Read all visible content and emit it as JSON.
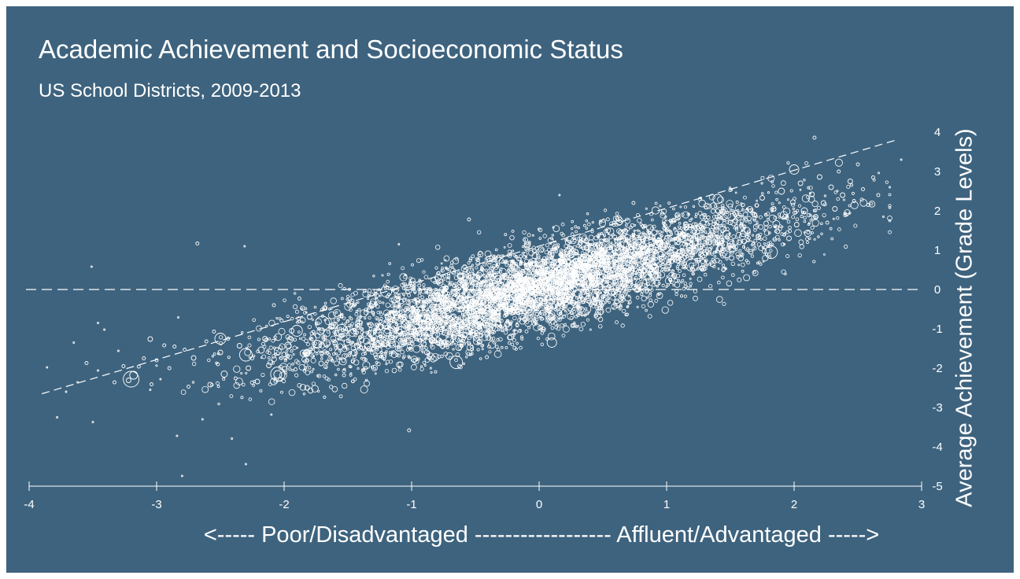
{
  "title": "Academic Achievement and Socioeconomic Status",
  "subtitle": "US School Districts, 2009-2013",
  "chart_data": {
    "type": "scatter",
    "title": "Academic Achievement and Socioeconomic Status",
    "subtitle": "US School Districts, 2009-2013",
    "xlabel": "<----- Poor/Disadvantaged ------------------ Affluent/Advantaged ----->",
    "ylabel": "Average Achievement (Grade Levels)",
    "xlim": [
      -4,
      3
    ],
    "ylim": [
      -5,
      4
    ],
    "x_ticks": [
      "-4",
      "-3",
      "-2",
      "-1",
      "0",
      "1",
      "2",
      "3"
    ],
    "y_ticks": [
      "4",
      "3",
      "2",
      "1",
      "0",
      "-1",
      "-2",
      "-3",
      "-4",
      "-5"
    ],
    "reference_line_y": 0,
    "trend_line": {
      "from": [
        -3.9,
        -2.65
      ],
      "to": [
        2.8,
        3.8
      ],
      "style": "dashed"
    },
    "grid": false,
    "marker": "hollow circle, size proportional to district enrollment",
    "colors": {
      "background": "#3e637e",
      "points": "#ffffff"
    },
    "points": [
      [
        -3.86,
        -1.98,
        1
      ],
      [
        -3.78,
        -3.25,
        1
      ],
      [
        -3.71,
        -2.6,
        1
      ],
      [
        -3.62,
        -2.36,
        1
      ],
      [
        -3.55,
        -1.87,
        2
      ],
      [
        -3.51,
        0.58,
        1
      ],
      [
        -3.5,
        -3.37,
        1
      ],
      [
        -3.46,
        -2.06,
        1
      ],
      [
        -3.41,
        -1.02,
        1
      ],
      [
        -3.33,
        -2.36,
        2
      ],
      [
        -3.3,
        -1.56,
        1
      ],
      [
        -3.26,
        -1.95,
        2
      ],
      [
        -3.22,
        -2.31,
        3
      ],
      [
        -3.18,
        -2.18,
        5
      ],
      [
        -3.14,
        -1.96,
        2
      ],
      [
        -3.1,
        -1.75,
        2
      ],
      [
        -3.05,
        -2.55,
        1
      ],
      [
        -3.04,
        -2.41,
        2
      ],
      [
        -3.0,
        -1.8,
        2
      ],
      [
        -2.97,
        -2.28,
        1
      ],
      [
        -2.94,
        -1.42,
        2
      ],
      [
        -2.9,
        -2.0,
        2
      ],
      [
        -2.86,
        -1.45,
        2
      ],
      [
        -2.83,
        -0.71,
        1
      ],
      [
        -2.8,
        -4.74,
        1
      ],
      [
        -2.78,
        -1.53,
        2
      ],
      [
        -2.75,
        -2.47,
        2
      ],
      [
        -2.71,
        -1.74,
        3
      ],
      [
        -2.68,
        1.17,
        2
      ],
      [
        -2.64,
        -3.3,
        1
      ],
      [
        -2.61,
        -1.32,
        2
      ],
      [
        -2.58,
        -2.42,
        3
      ],
      [
        -2.55,
        -1.07,
        2
      ],
      [
        -2.52,
        -1.9,
        2
      ],
      [
        -2.5,
        -1.6,
        3
      ],
      [
        -2.47,
        -2.15,
        4
      ],
      [
        -2.44,
        -1.25,
        2
      ],
      [
        -2.41,
        -3.79,
        1
      ],
      [
        -2.38,
        -2.26,
        2
      ],
      [
        -2.35,
        -1.43,
        3
      ],
      [
        -2.31,
        1.1,
        1
      ],
      [
        -2.3,
        -4.44,
        1
      ],
      [
        -2.28,
        -2.0,
        3
      ],
      [
        -2.25,
        -1.75,
        2
      ],
      [
        -2.21,
        -2.34,
        3
      ],
      [
        -2.18,
        -1.54,
        4
      ],
      [
        -2.15,
        -1.25,
        3
      ],
      [
        -2.12,
        -1.93,
        3
      ],
      [
        -2.1,
        -3.18,
        1
      ],
      [
        -2.08,
        -0.4,
        2
      ],
      [
        -2.05,
        -2.16,
        5
      ],
      [
        -2.02,
        -0.79,
        2
      ],
      [
        -2.0,
        -1.65,
        3
      ],
      [
        -1.97,
        -1.42,
        4
      ],
      [
        -1.94,
        -1.05,
        3
      ],
      [
        -1.91,
        -2.03,
        2
      ],
      [
        -1.88,
        -0.23,
        2
      ],
      [
        -1.85,
        -1.62,
        4
      ],
      [
        -1.82,
        -2.5,
        3
      ],
      [
        -1.8,
        -0.7,
        3
      ],
      [
        -1.77,
        -1.08,
        2
      ],
      [
        -1.74,
        -1.39,
        5
      ],
      [
        -1.71,
        -1.88,
        3
      ],
      [
        -1.68,
        -0.47,
        3
      ],
      [
        -1.66,
        -1.61,
        2
      ],
      [
        -1.63,
        -0.94,
        3
      ],
      [
        -1.6,
        -1.36,
        3
      ],
      [
        -1.58,
        -1.74,
        2
      ],
      [
        -1.55,
        -0.67,
        2
      ],
      [
        -1.53,
        -2.18,
        2
      ],
      [
        -1.5,
        -1.0,
        3
      ],
      [
        -1.47,
        -0.3,
        3
      ],
      [
        -1.45,
        -1.61,
        4
      ],
      [
        -1.42,
        -0.82,
        2
      ],
      [
        -1.39,
        -1.28,
        3
      ],
      [
        -1.36,
        -2.0,
        2
      ],
      [
        -1.33,
        -0.52,
        3
      ],
      [
        -1.3,
        -1.5,
        2
      ],
      [
        -1.28,
        -0.37,
        2
      ],
      [
        -1.25,
        -0.95,
        4
      ],
      [
        -1.22,
        -1.72,
        3
      ],
      [
        -1.19,
        -0.18,
        2
      ],
      [
        -1.16,
        -1.22,
        3
      ],
      [
        -1.13,
        -0.6,
        3
      ],
      [
        -1.1,
        -1.46,
        2
      ],
      [
        -1.08,
        -0.3,
        3
      ],
      [
        -1.05,
        -0.88,
        5
      ],
      [
        -1.02,
        -3.58,
        2
      ],
      [
        -1.0,
        -0.52,
        3
      ],
      [
        -0.97,
        -1.18,
        3
      ],
      [
        -0.94,
        0.1,
        2
      ],
      [
        -0.91,
        -0.72,
        4
      ],
      [
        -0.88,
        -1.6,
        3
      ],
      [
        -0.85,
        -0.2,
        3
      ],
      [
        -0.82,
        -0.95,
        3
      ],
      [
        -0.79,
        -1.38,
        2
      ],
      [
        -0.76,
        -0.5,
        4
      ],
      [
        -0.73,
        0.04,
        3
      ],
      [
        -0.7,
        -1.1,
        3
      ],
      [
        -0.67,
        -0.68,
        3
      ],
      [
        -0.64,
        -0.15,
        3
      ],
      [
        -0.61,
        -1.42,
        2
      ],
      [
        -0.58,
        0.48,
        2
      ],
      [
        -0.55,
        -0.8,
        4
      ],
      [
        -0.52,
        -0.31,
        3
      ],
      [
        -0.49,
        -1.0,
        2
      ],
      [
        -0.47,
        0.12,
        3
      ],
      [
        -0.44,
        -0.55,
        3
      ],
      [
        -0.41,
        -1.72,
        2
      ],
      [
        -0.38,
        -0.2,
        4
      ],
      [
        -0.35,
        0.37,
        2
      ],
      [
        -0.32,
        -0.86,
        3
      ],
      [
        -0.29,
        -0.38,
        3
      ],
      [
        -0.26,
        0.05,
        2
      ],
      [
        -0.23,
        -1.22,
        3
      ],
      [
        -0.2,
        -0.57,
        3
      ],
      [
        -0.17,
        0.29,
        3
      ],
      [
        -0.14,
        -0.1,
        4
      ],
      [
        -0.11,
        -0.76,
        3
      ],
      [
        -0.08,
        0.59,
        2
      ],
      [
        -0.05,
        -0.33,
        3
      ],
      [
        -0.02,
        0.15,
        4
      ],
      [
        0.01,
        -0.97,
        3
      ],
      [
        0.04,
        0.47,
        3
      ],
      [
        0.07,
        -0.22,
        3
      ],
      [
        0.1,
        0.81,
        2
      ],
      [
        0.13,
        0.1,
        3
      ],
      [
        0.16,
        -0.59,
        3
      ],
      [
        0.19,
        0.36,
        3
      ],
      [
        0.22,
        -0.18,
        4
      ],
      [
        0.25,
        0.95,
        2
      ],
      [
        0.28,
        0.22,
        3
      ],
      [
        0.31,
        -0.47,
        2
      ],
      [
        0.34,
        0.58,
        3
      ],
      [
        0.37,
        0.07,
        3
      ],
      [
        0.4,
        0.9,
        3
      ],
      [
        0.43,
        0.36,
        4
      ],
      [
        0.46,
        -0.12,
        2
      ],
      [
        0.49,
        0.73,
        3
      ],
      [
        0.52,
        0.25,
        3
      ],
      [
        0.55,
        1.1,
        2
      ],
      [
        0.58,
        0.5,
        3
      ],
      [
        0.61,
        -0.3,
        3
      ],
      [
        0.64,
        0.86,
        3
      ],
      [
        0.67,
        0.33,
        3
      ],
      [
        0.7,
        1.23,
        2
      ],
      [
        0.73,
        0.63,
        4
      ],
      [
        0.76,
        0.1,
        2
      ],
      [
        0.79,
        1.0,
        3
      ],
      [
        0.82,
        0.47,
        3
      ],
      [
        0.85,
        1.36,
        3
      ],
      [
        0.88,
        0.76,
        3
      ],
      [
        0.91,
        0.26,
        2
      ],
      [
        0.94,
        1.15,
        3
      ],
      [
        0.97,
        0.6,
        3
      ],
      [
        1.0,
        1.5,
        2
      ],
      [
        1.03,
        0.93,
        4
      ],
      [
        1.06,
        0.35,
        3
      ],
      [
        1.09,
        1.3,
        3
      ],
      [
        1.12,
        0.76,
        3
      ],
      [
        1.15,
        1.66,
        3
      ],
      [
        1.18,
        1.06,
        4
      ],
      [
        1.21,
        0.5,
        2
      ],
      [
        1.24,
        1.46,
        3
      ],
      [
        1.27,
        0.9,
        3
      ],
      [
        1.3,
        1.83,
        2
      ],
      [
        1.33,
        1.2,
        3
      ],
      [
        1.36,
        0.64,
        3
      ],
      [
        1.39,
        1.6,
        3
      ],
      [
        1.42,
        1.05,
        4
      ],
      [
        1.45,
        2.0,
        2
      ],
      [
        1.48,
        1.35,
        3
      ],
      [
        1.51,
        0.8,
        3
      ],
      [
        1.54,
        1.75,
        3
      ],
      [
        1.57,
        1.2,
        3
      ],
      [
        1.6,
        2.15,
        2
      ],
      [
        1.63,
        1.5,
        4
      ],
      [
        1.66,
        0.96,
        3
      ],
      [
        1.69,
        1.9,
        3
      ],
      [
        1.72,
        1.33,
        3
      ],
      [
        1.75,
        2.33,
        3
      ],
      [
        1.78,
        1.68,
        3
      ],
      [
        1.81,
        1.1,
        2
      ],
      [
        1.84,
        2.05,
        3
      ],
      [
        1.87,
        1.48,
        3
      ],
      [
        1.9,
        2.5,
        4
      ],
      [
        1.93,
        1.85,
        3
      ],
      [
        1.96,
        1.3,
        3
      ],
      [
        1.99,
        2.22,
        3
      ],
      [
        2.02,
        1.65,
        3
      ],
      [
        2.05,
        2.7,
        3
      ],
      [
        2.08,
        2.0,
        4
      ],
      [
        2.11,
        1.45,
        2
      ],
      [
        2.14,
        2.42,
        3
      ],
      [
        2.17,
        1.85,
        3
      ],
      [
        2.2,
        2.86,
        3
      ],
      [
        2.23,
        2.2,
        3
      ],
      [
        2.26,
        1.7,
        2
      ],
      [
        2.29,
        2.6,
        3
      ],
      [
        2.32,
        2.05,
        3
      ],
      [
        2.35,
        3.0,
        2
      ],
      [
        2.38,
        2.4,
        3
      ],
      [
        2.41,
        1.9,
        2
      ],
      [
        2.44,
        2.75,
        3
      ],
      [
        2.47,
        2.25,
        2
      ],
      [
        2.5,
        3.18,
        2
      ],
      [
        2.54,
        2.55,
        2
      ],
      [
        2.58,
        2.15,
        2
      ],
      [
        2.62,
        2.85,
        2
      ],
      [
        2.66,
        2.4,
        2
      ],
      [
        2.7,
        1.85,
        1
      ],
      [
        2.75,
        2.6,
        1
      ],
      [
        2.16,
        3.86,
        2
      ],
      [
        1.82,
        0.95,
        8
      ],
      [
        -3.2,
        -2.28,
        10
      ],
      [
        -2.05,
        -2.15,
        9
      ],
      [
        -1.55,
        -1.05,
        8
      ],
      [
        -0.65,
        -1.85,
        8
      ],
      [
        -1.0,
        -0.65,
        9
      ],
      [
        0.35,
        -0.48,
        9
      ],
      [
        1.2,
        0.62,
        8
      ],
      [
        -1.7,
        -0.86,
        9
      ],
      [
        -2.5,
        -1.25,
        7
      ],
      [
        -0.2,
        0.5,
        7
      ],
      [
        1.65,
        1.1,
        7
      ],
      [
        2.0,
        3.05,
        6
      ],
      [
        1.4,
        2.3,
        6
      ],
      [
        -1.2,
        -0.05,
        7
      ],
      [
        0.8,
        0.15,
        7
      ],
      [
        -0.4,
        -0.3,
        8
      ],
      [
        0.1,
        -1.35,
        6
      ],
      [
        -2.3,
        -1.66,
        8
      ],
      [
        -1.9,
        -1.05,
        7
      ],
      [
        0.55,
        0.7,
        7
      ],
      [
        -3.05,
        -1.26,
        3
      ],
      [
        -3.46,
        -0.85,
        1
      ],
      [
        -2.84,
        -3.72,
        1
      ],
      [
        -1.1,
        1.15,
        1
      ],
      [
        -0.55,
        1.78,
        2
      ],
      [
        0.74,
        2.2,
        2
      ],
      [
        0.16,
        2.4,
        1
      ],
      [
        -3.65,
        -1.35,
        1
      ],
      [
        2.84,
        3.3,
        1
      ]
    ]
  }
}
